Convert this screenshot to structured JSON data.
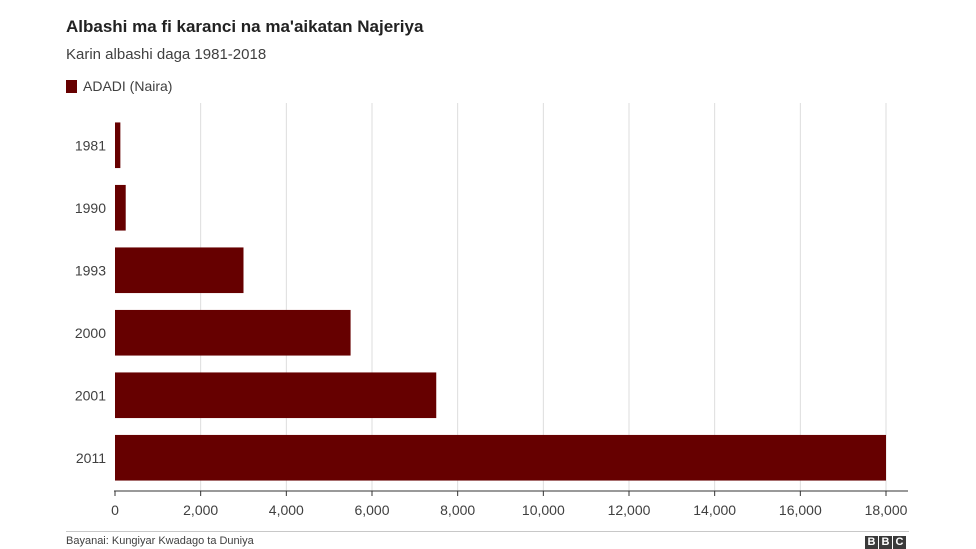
{
  "header": {
    "title": "Albashi ma fi karanci na ma'aikatan Najeriya",
    "subtitle": "Karin albashi daga 1981-2018"
  },
  "footer": {
    "source": "Bayanai: Kungiyar Kwadago ta Duniya",
    "logo_letters": [
      "B",
      "B",
      "C"
    ]
  },
  "colors": {
    "bar": "#660000",
    "grid": "#dddddd",
    "axis": "#333333",
    "text": "#404040"
  },
  "chart_data": {
    "type": "bar",
    "orientation": "horizontal",
    "title": "Albashi ma fi karanci na ma'aikatan Najeriya",
    "subtitle": "Karin albashi daga 1981-2018",
    "categories": [
      "1981",
      "1990",
      "1993",
      "2000",
      "2001",
      "2011"
    ],
    "series": [
      {
        "name": "ADADI (Naira)",
        "values": [
          125,
          250,
          3000,
          5500,
          7500,
          18000
        ]
      }
    ],
    "xlim": [
      0,
      18000
    ],
    "xticks": [
      "0",
      "2,000",
      "4,000",
      "6,000",
      "8,000",
      "10,000",
      "12,000",
      "14,000",
      "16,000",
      "18,000"
    ],
    "grid": true,
    "legend_position": "top-left"
  }
}
